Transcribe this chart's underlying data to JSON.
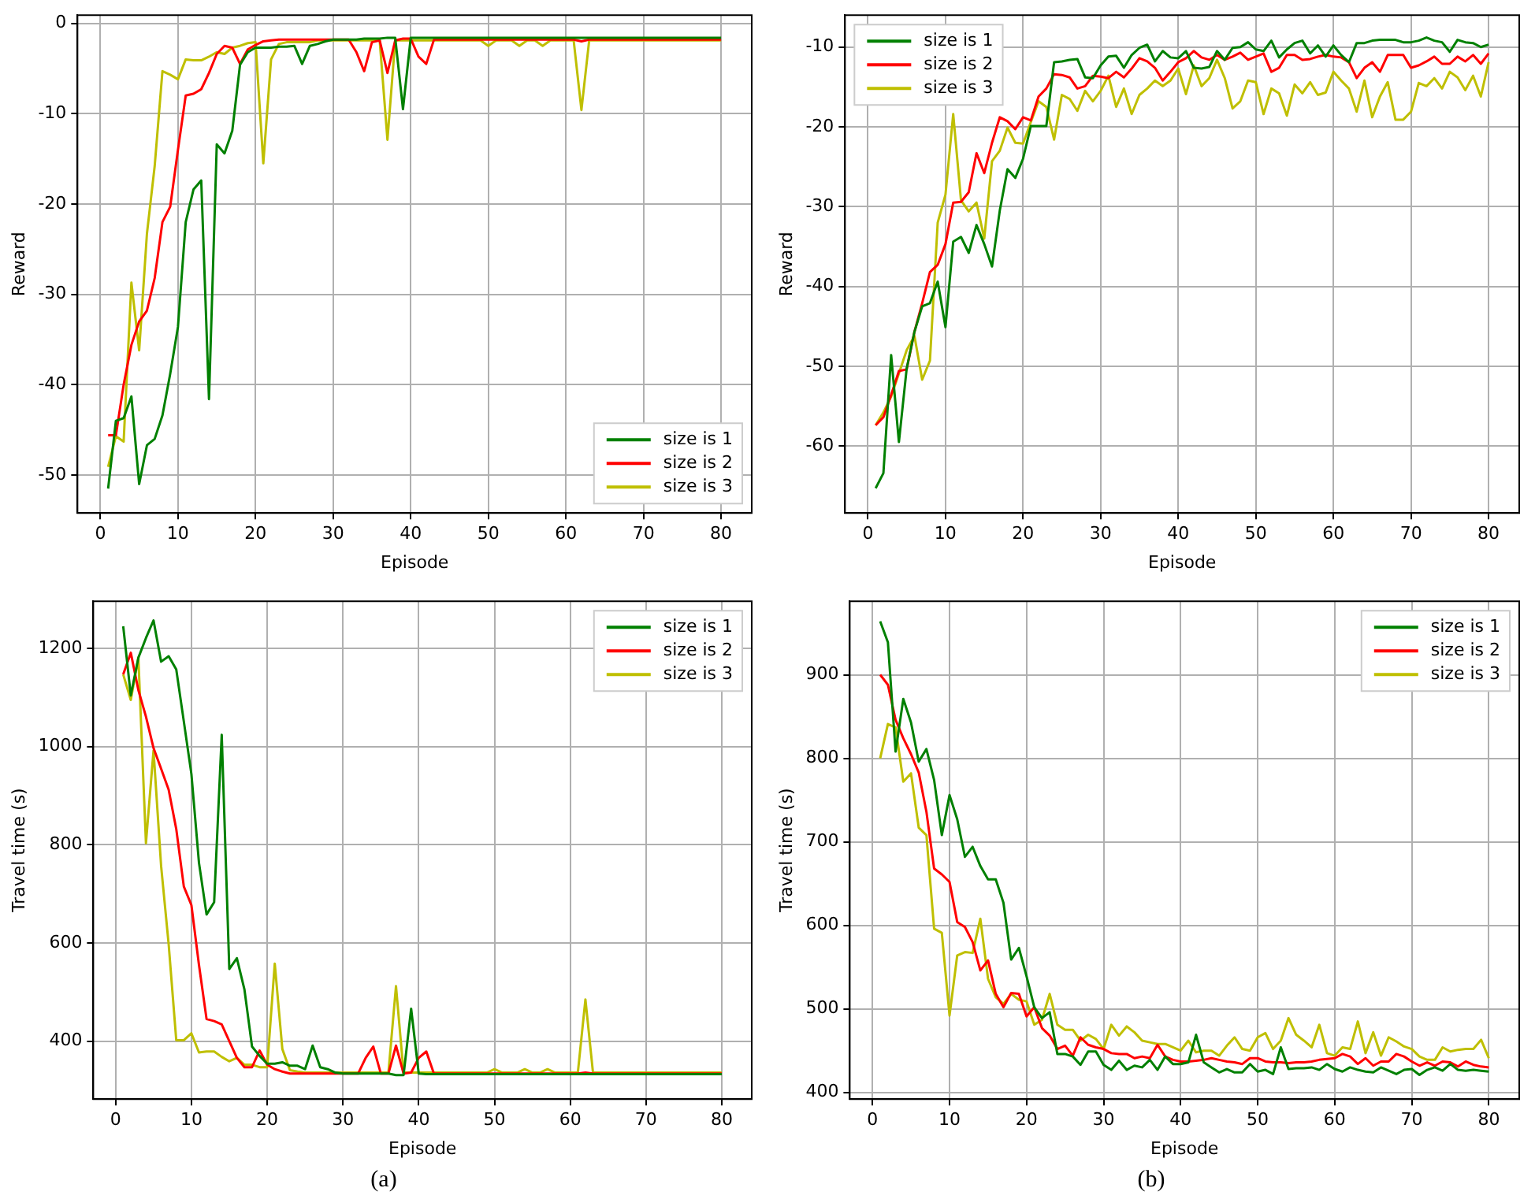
{
  "chart_data": [
    {
      "type": "line",
      "xlabel": "Episode",
      "ylabel": "Reward",
      "grid": true,
      "legend": "bottom right",
      "xlim": [
        -2.95,
        83.95
      ],
      "xticks": [
        0,
        10,
        20,
        30,
        40,
        50,
        60,
        70,
        80
      ],
      "ylim": [
        -54.2,
        0.9
      ],
      "yticks": [
        -50,
        -40,
        -30,
        -20,
        -10,
        0
      ],
      "x": [
        1,
        2,
        3,
        4,
        5,
        6,
        7,
        8,
        9,
        10,
        11,
        12,
        13,
        14,
        15,
        16,
        17,
        18,
        19,
        20,
        21,
        22,
        23,
        24,
        25,
        26,
        27,
        28,
        29,
        30,
        31,
        32,
        33,
        34,
        35,
        36,
        37,
        38,
        39,
        40,
        41,
        42,
        43,
        44,
        45,
        46,
        47,
        48,
        49,
        50,
        51,
        52,
        53,
        54,
        55,
        56,
        57,
        58,
        59,
        60,
        61,
        62,
        63,
        64,
        65,
        66,
        67,
        68,
        69,
        70,
        71,
        72,
        73,
        74,
        75,
        76,
        77,
        78,
        79,
        80
      ],
      "series": [
        {
          "name": "size is 1",
          "color": "#008000",
          "values": [
            -51.5,
            -44,
            -43.7,
            -41.3,
            -51,
            -46.7,
            -46,
            -43.4,
            -38.8,
            -33.6,
            -22,
            -18.4,
            -17.4,
            -41.6,
            -13.4,
            -14.4,
            -11.9,
            -4.6,
            -3.2,
            -2.7,
            -2.7,
            -2.7,
            -2.6,
            -2.6,
            -2.5,
            -4.5,
            -2.5,
            -2.3,
            -2,
            -1.8,
            -1.8,
            -1.8,
            -1.8,
            -1.7,
            -1.7,
            -1.7,
            -1.6,
            -1.6,
            -9.5,
            -1.6,
            -1.6,
            -1.6,
            -1.6,
            -1.6,
            -1.6,
            -1.6,
            -1.6,
            -1.6,
            -1.6,
            -1.6,
            -1.6,
            -1.6,
            -1.6,
            -1.6,
            -1.6,
            -1.6,
            -1.6,
            -1.6,
            -1.6,
            -1.6,
            -1.6,
            -1.6,
            -1.6,
            -1.6,
            -1.6,
            -1.6,
            -1.6,
            -1.6,
            -1.6,
            -1.6,
            -1.6,
            -1.6,
            -1.6,
            -1.6,
            -1.6,
            -1.6,
            -1.6,
            -1.6,
            -1.6,
            -1.6
          ]
        },
        {
          "name": "size is 2",
          "color": "#ff0000",
          "values": [
            -45.6,
            -45.6,
            -40,
            -35.6,
            -33,
            -31.8,
            -28.2,
            -22,
            -20.3,
            -14,
            -8,
            -7.8,
            -7.3,
            -5.5,
            -3.4,
            -2.5,
            -2.7,
            -4.5,
            -2.9,
            -2.4,
            -2,
            -1.9,
            -1.8,
            -1.8,
            -1.8,
            -1.8,
            -1.8,
            -1.8,
            -1.8,
            -1.8,
            -1.8,
            -1.8,
            -3.2,
            -5.3,
            -2.1,
            -1.9,
            -5.5,
            -1.9,
            -1.7,
            -1.7,
            -3.7,
            -4.5,
            -1.8,
            -1.8,
            -1.8,
            -1.8,
            -1.8,
            -1.8,
            -1.8,
            -1.8,
            -1.8,
            -1.8,
            -1.8,
            -1.8,
            -1.8,
            -1.8,
            -1.8,
            -1.8,
            -1.8,
            -1.8,
            -1.8,
            -2,
            -1.8,
            -1.8,
            -1.8,
            -1.8,
            -1.8,
            -1.8,
            -1.8,
            -1.8,
            -1.8,
            -1.8,
            -1.8,
            -1.8,
            -1.8,
            -1.8,
            -1.8,
            -1.8,
            -1.8,
            -1.8
          ]
        },
        {
          "name": "size is 3",
          "color": "#bfbf00",
          "values": [
            -49.1,
            -45.7,
            -46.3,
            -28.7,
            -36.2,
            -23.3,
            -15.8,
            -5.3,
            -5.7,
            -6.2,
            -4,
            -4.1,
            -4.1,
            -3.7,
            -3.2,
            -3.4,
            -2.7,
            -2.5,
            -2.2,
            -2.1,
            -15.5,
            -4,
            -2.3,
            -2.1,
            -2.1,
            -2.1,
            -2.1,
            -1.9,
            -1.9,
            -1.9,
            -1.9,
            -1.9,
            -1.9,
            -1.9,
            -1.9,
            -1.9,
            -12.9,
            -1.9,
            -1.9,
            -1.9,
            -1.9,
            -1.9,
            -1.9,
            -1.9,
            -1.9,
            -1.9,
            -1.9,
            -1.9,
            -1.9,
            -2.5,
            -1.9,
            -1.9,
            -1.9,
            -2.5,
            -1.9,
            -1.9,
            -2.5,
            -1.9,
            -1.9,
            -1.9,
            -1.9,
            -9.6,
            -1.9,
            -1.9,
            -1.9,
            -1.9,
            -1.9,
            -1.9,
            -1.9,
            -1.9,
            -1.9,
            -1.9,
            -1.9,
            -1.9,
            -1.9,
            -1.9,
            -1.9,
            -1.9,
            -1.9,
            -1.9
          ]
        }
      ]
    },
    {
      "type": "line",
      "xlabel": "Episode",
      "ylabel": "Reward",
      "grid": true,
      "legend": "top left",
      "xlim": [
        -2.95,
        83.95
      ],
      "xticks": [
        0,
        10,
        20,
        30,
        40,
        50,
        60,
        70,
        80
      ],
      "ylim": [
        -68.4,
        -6
      ],
      "yticks": [
        -60,
        -50,
        -40,
        -30,
        -20,
        -10
      ],
      "x": [
        1,
        2,
        3,
        4,
        5,
        6,
        7,
        8,
        9,
        10,
        11,
        12,
        13,
        14,
        15,
        16,
        17,
        18,
        19,
        20,
        21,
        22,
        23,
        24,
        25,
        26,
        27,
        28,
        29,
        30,
        31,
        32,
        33,
        34,
        35,
        36,
        37,
        38,
        39,
        40,
        41,
        42,
        43,
        44,
        45,
        46,
        47,
        48,
        49,
        50,
        51,
        52,
        53,
        54,
        55,
        56,
        57,
        58,
        59,
        60,
        61,
        62,
        63,
        64,
        65,
        66,
        67,
        68,
        69,
        70,
        71,
        72,
        73,
        74,
        75,
        76,
        77,
        78,
        79,
        80
      ],
      "series": [
        {
          "name": "size is 1",
          "color": "#008000",
          "values": [
            -65.3,
            -63.4,
            -48.6,
            -59.5,
            -50.3,
            -45.7,
            -42.5,
            -42.1,
            -39.4,
            -45.1,
            -34.4,
            -33.8,
            -35.8,
            -32.3,
            -34.7,
            -37.5,
            -30.5,
            -25.3,
            -26.4,
            -24,
            -19.9,
            -19.9,
            -19.9,
            -11.9,
            -11.8,
            -11.6,
            -11.5,
            -13.8,
            -13.9,
            -12.3,
            -11.2,
            -11.1,
            -12.6,
            -11,
            -10.1,
            -9.7,
            -11.8,
            -10.5,
            -11.3,
            -11.4,
            -10.5,
            -12.6,
            -12.7,
            -12.5,
            -10.5,
            -11.6,
            -10.1,
            -10,
            -9.4,
            -10.3,
            -10.5,
            -9.2,
            -11.3,
            -10.3,
            -9.5,
            -9.2,
            -10.8,
            -9.8,
            -11.2,
            -9.8,
            -11,
            -11.9,
            -9.5,
            -9.5,
            -9.2,
            -9.1,
            -9.1,
            -9.1,
            -9.4,
            -9.4,
            -9.2,
            -8.8,
            -9.2,
            -9.4,
            -10.6,
            -9.1,
            -9.4,
            -9.5,
            -10,
            -9.7
          ]
        },
        {
          "name": "size is 2",
          "color": "#ff0000",
          "values": [
            -57.4,
            -56.4,
            -53.6,
            -50.6,
            -50.4,
            -45.7,
            -42.1,
            -38.2,
            -37.3,
            -34.7,
            -29.5,
            -29.4,
            -28.2,
            -23.3,
            -25.8,
            -22,
            -18.8,
            -19.3,
            -20.3,
            -18.8,
            -19.2,
            -16.2,
            -15.2,
            -13.4,
            -13.5,
            -13.8,
            -15.2,
            -14.9,
            -13.6,
            -13.7,
            -13.9,
            -13.1,
            -13.8,
            -12.7,
            -11.4,
            -11.8,
            -12.6,
            -14.2,
            -13.1,
            -11.9,
            -11.4,
            -10.5,
            -11.3,
            -11.6,
            -11,
            -11.6,
            -11.2,
            -10.7,
            -11.6,
            -11.2,
            -10.8,
            -13.1,
            -12.6,
            -11,
            -11,
            -11.6,
            -11.5,
            -11.2,
            -11,
            -11.2,
            -11.3,
            -11.9,
            -13.9,
            -12.6,
            -11.9,
            -13.1,
            -11,
            -11,
            -11,
            -12.6,
            -12.3,
            -11.8,
            -11.2,
            -12.1,
            -12.1,
            -11.2,
            -11.8,
            -11,
            -12.1,
            -10.8
          ]
        },
        {
          "name": "size is 3",
          "color": "#bfbf00",
          "values": [
            -57.4,
            -55.8,
            -53.8,
            -50.9,
            -48,
            -46.2,
            -51.7,
            -49.3,
            -32,
            -28.5,
            -18.4,
            -29.2,
            -30.6,
            -29.5,
            -34,
            -24.3,
            -23,
            -20.1,
            -22,
            -22.1,
            -19.4,
            -16.8,
            -17.5,
            -21.6,
            -16,
            -16.5,
            -18,
            -15.5,
            -16.8,
            -15.5,
            -13.6,
            -17.5,
            -15.2,
            -18.4,
            -16,
            -15.2,
            -14.2,
            -14.9,
            -14.2,
            -12.7,
            -15.9,
            -12.3,
            -14.9,
            -13.9,
            -11.6,
            -13.9,
            -17.7,
            -16.8,
            -14.2,
            -14.4,
            -18.4,
            -15.2,
            -15.8,
            -18.6,
            -14.7,
            -15.8,
            -14.4,
            -16,
            -15.7,
            -13.1,
            -14.2,
            -15.2,
            -18.1,
            -14.2,
            -18.8,
            -16.2,
            -14.4,
            -19.1,
            -19.1,
            -18.1,
            -14.5,
            -14.9,
            -13.9,
            -15.2,
            -13.1,
            -13.8,
            -15.4,
            -13.6,
            -16.2,
            -11.9
          ]
        }
      ]
    },
    {
      "type": "line",
      "xlabel": "Episode",
      "ylabel": "Travel time (s)",
      "grid": true,
      "legend": "top right",
      "annotations": [
        "(a)"
      ],
      "xlim": [
        -2.95,
        83.95
      ],
      "xticks": [
        0,
        10,
        20,
        30,
        40,
        50,
        60,
        70,
        80
      ],
      "ylim": [
        282,
        1296
      ],
      "yticks": [
        400,
        600,
        800,
        1000,
        1200
      ],
      "x": [
        1,
        2,
        3,
        4,
        5,
        6,
        7,
        8,
        9,
        10,
        11,
        12,
        13,
        14,
        15,
        16,
        17,
        18,
        19,
        20,
        21,
        22,
        23,
        24,
        25,
        26,
        27,
        28,
        29,
        30,
        31,
        32,
        33,
        34,
        35,
        36,
        37,
        38,
        39,
        40,
        41,
        42,
        43,
        44,
        45,
        46,
        47,
        48,
        49,
        50,
        51,
        52,
        53,
        54,
        55,
        56,
        57,
        58,
        59,
        60,
        61,
        62,
        63,
        64,
        65,
        66,
        67,
        68,
        69,
        70,
        71,
        72,
        73,
        74,
        75,
        76,
        77,
        78,
        79,
        80
      ],
      "series": [
        {
          "name": "size is 1",
          "color": "#008000",
          "values": [
            1245,
            1104,
            1181,
            1221,
            1257,
            1173,
            1184,
            1157,
            1051,
            944,
            763,
            658,
            683,
            1024,
            547,
            569,
            505,
            389,
            370,
            354,
            354,
            357,
            350,
            350,
            343,
            391,
            347,
            343,
            336,
            334,
            334,
            334,
            334,
            334,
            334,
            334,
            331,
            331,
            466,
            334,
            333,
            333,
            333,
            333,
            333,
            333,
            333,
            333,
            333,
            333,
            333,
            333,
            333,
            333,
            333,
            333,
            333,
            333,
            333,
            333,
            333,
            333,
            333,
            333,
            333,
            333,
            333,
            333,
            333,
            333,
            333,
            333,
            333,
            333,
            333,
            333,
            333,
            333,
            333,
            333
          ]
        },
        {
          "name": "size is 2",
          "color": "#ff0000",
          "values": [
            1147,
            1191,
            1115,
            1061,
            997,
            955,
            912,
            832,
            715,
            677,
            555,
            445,
            441,
            434,
            400,
            366,
            347,
            347,
            381,
            352,
            343,
            338,
            334,
            334,
            334,
            334,
            334,
            334,
            334,
            334,
            334,
            334,
            366,
            389,
            334,
            334,
            391,
            334,
            336,
            366,
            379,
            334,
            334,
            334,
            334,
            334,
            334,
            334,
            334,
            334,
            334,
            334,
            334,
            334,
            334,
            334,
            334,
            334,
            334,
            334,
            334,
            336,
            334,
            334,
            334,
            334,
            334,
            334,
            334,
            334,
            334,
            334,
            334,
            334,
            334,
            334,
            334,
            334,
            334,
            334
          ]
        },
        {
          "name": "size is 3",
          "color": "#bfbf00",
          "values": [
            1147,
            1095,
            1181,
            803,
            992,
            757,
            597,
            402,
            402,
            416,
            377,
            379,
            379,
            368,
            359,
            366,
            352,
            352,
            347,
            347,
            558,
            384,
            341,
            338,
            336,
            336,
            336,
            336,
            336,
            336,
            336,
            336,
            336,
            336,
            336,
            336,
            512,
            336,
            336,
            336,
            336,
            336,
            336,
            336,
            336,
            336,
            336,
            336,
            336,
            343,
            336,
            336,
            336,
            343,
            336,
            336,
            343,
            336,
            336,
            336,
            336,
            485,
            336,
            336,
            336,
            336,
            336,
            336,
            336,
            336,
            336,
            336,
            336,
            336,
            336,
            336,
            336,
            336,
            336,
            336
          ]
        }
      ]
    },
    {
      "type": "line",
      "xlabel": "Episode",
      "ylabel": "Travel time (s)",
      "grid": true,
      "legend": "top right",
      "annotations": [
        "(b)"
      ],
      "xlim": [
        -2.95,
        83.95
      ],
      "xticks": [
        0,
        10,
        20,
        30,
        40,
        50,
        60,
        70,
        80
      ],
      "ylim": [
        392,
        988
      ],
      "yticks": [
        400,
        500,
        600,
        700,
        800,
        900
      ],
      "x": [
        1,
        2,
        3,
        4,
        5,
        6,
        7,
        8,
        9,
        10,
        11,
        12,
        13,
        14,
        15,
        16,
        17,
        18,
        19,
        20,
        21,
        22,
        23,
        24,
        25,
        26,
        27,
        28,
        29,
        30,
        31,
        32,
        33,
        34,
        35,
        36,
        37,
        38,
        39,
        40,
        41,
        42,
        43,
        44,
        45,
        46,
        47,
        48,
        49,
        50,
        51,
        52,
        53,
        54,
        55,
        56,
        57,
        58,
        59,
        60,
        61,
        62,
        63,
        64,
        65,
        66,
        67,
        68,
        69,
        70,
        71,
        72,
        73,
        74,
        75,
        76,
        77,
        78,
        79,
        80
      ],
      "series": [
        {
          "name": "size is 1",
          "color": "#008000",
          "values": [
            964,
            939,
            808,
            871,
            843,
            796,
            811,
            774,
            708,
            756,
            727,
            682,
            694,
            671,
            655,
            655,
            627,
            559,
            573,
            539,
            502,
            489,
            496,
            446,
            446,
            443,
            433,
            449,
            449,
            433,
            427,
            438,
            427,
            432,
            430,
            439,
            427,
            443,
            434,
            434,
            436,
            469,
            436,
            430,
            424,
            428,
            424,
            424,
            434,
            425,
            427,
            422,
            454,
            428,
            429,
            429,
            430,
            427,
            434,
            428,
            425,
            430,
            427,
            425,
            424,
            430,
            426,
            422,
            427,
            428,
            421,
            427,
            430,
            426,
            434,
            427,
            426,
            427,
            426,
            425
          ]
        },
        {
          "name": "size is 2",
          "color": "#ff0000",
          "values": [
            900,
            888,
            846,
            824,
            805,
            783,
            736,
            668,
            661,
            652,
            604,
            598,
            580,
            546,
            558,
            518,
            502,
            519,
            518,
            491,
            502,
            477,
            468,
            452,
            456,
            444,
            466,
            457,
            454,
            452,
            447,
            446,
            446,
            441,
            443,
            441,
            457,
            443,
            439,
            437,
            437,
            438,
            439,
            441,
            439,
            437,
            436,
            434,
            441,
            441,
            437,
            436,
            436,
            435,
            436,
            436,
            437,
            439,
            440,
            441,
            446,
            443,
            434,
            441,
            432,
            437,
            437,
            446,
            443,
            437,
            432,
            436,
            432,
            437,
            436,
            431,
            437,
            433,
            431,
            430
          ]
        },
        {
          "name": "size is 3",
          "color": "#bfbf00",
          "values": [
            800,
            841,
            837,
            772,
            782,
            717,
            708,
            596,
            591,
            492,
            564,
            568,
            567,
            608,
            536,
            514,
            506,
            518,
            511,
            509,
            481,
            487,
            518,
            481,
            475,
            475,
            462,
            469,
            464,
            452,
            481,
            468,
            479,
            472,
            462,
            460,
            458,
            458,
            454,
            450,
            462,
            448,
            450,
            450,
            444,
            456,
            466,
            452,
            450,
            466,
            471,
            452,
            462,
            489,
            469,
            462,
            454,
            481,
            447,
            444,
            454,
            452,
            485,
            447,
            472,
            444,
            466,
            461,
            455,
            452,
            443,
            439,
            439,
            454,
            449,
            451,
            452,
            452,
            463,
            441
          ]
        }
      ]
    }
  ]
}
